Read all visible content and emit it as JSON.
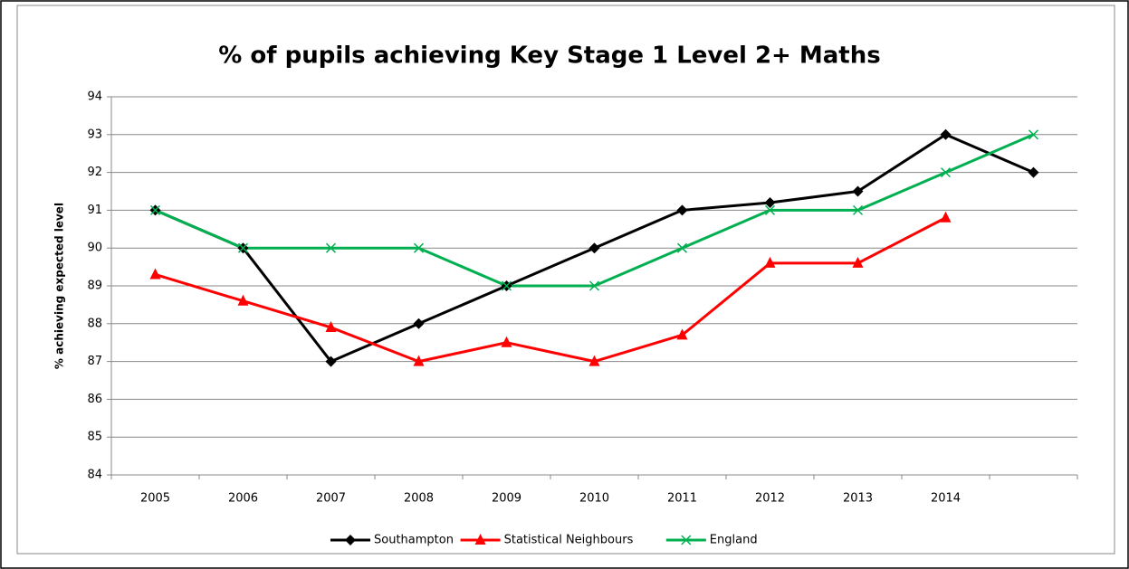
{
  "chart_data": {
    "type": "line",
    "title": "% of pupils achieving Key Stage 1 Level 2+ Maths",
    "y_label": "% achieving expected level",
    "categories": [
      "2005",
      "2006",
      "2007",
      "2008",
      "2009",
      "2010",
      "2011",
      "2012",
      "2013",
      "2014",
      null
    ],
    "series": [
      {
        "name": "Southampton",
        "color": "#000000",
        "marker": "diamond",
        "values": [
          91,
          90,
          87,
          88,
          89,
          90,
          91,
          91.2,
          91.5,
          93,
          92
        ]
      },
      {
        "name": "Statistical Neighbours",
        "color": "#ff0000",
        "marker": "triangle",
        "values": [
          89.3,
          88.6,
          87.9,
          87,
          87.5,
          87,
          87.7,
          89.6,
          89.6,
          90.8,
          null
        ]
      },
      {
        "name": "England",
        "color": "#00b050",
        "marker": "x",
        "values": [
          91,
          90,
          90,
          90,
          89,
          89,
          90,
          91,
          91,
          92,
          93
        ]
      }
    ],
    "ylim": [
      84,
      94
    ],
    "yticks": [
      84,
      85,
      86,
      87,
      88,
      89,
      90,
      91,
      92,
      93,
      94
    ],
    "grid": true,
    "legend": "bottom"
  }
}
